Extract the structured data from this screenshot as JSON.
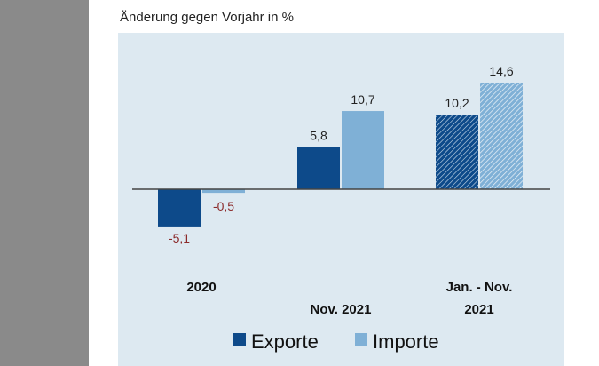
{
  "chart_data": {
    "type": "bar",
    "subtitle": "Änderung gegen Vorjahr in %",
    "categories": [
      [
        "2020"
      ],
      [
        "Nov. 2021"
      ],
      [
        "Jan. - Nov.",
        "2021"
      ]
    ],
    "series": [
      {
        "name": "Exporte",
        "values": [
          -5.1,
          5.8,
          10.2
        ],
        "labels": [
          "-5,1",
          "5,8",
          "10,2"
        ],
        "color": "#0d4a8a"
      },
      {
        "name": "Importe",
        "values": [
          -0.5,
          10.7,
          14.6
        ],
        "labels": [
          "-0,5",
          "10,7",
          "14,6"
        ],
        "color": "#7fb0d6"
      }
    ],
    "hatched_category": "Jan. - Nov. 2021",
    "negative_label_color": "#8b2a2a",
    "legend": "bottom",
    "grid": false
  }
}
